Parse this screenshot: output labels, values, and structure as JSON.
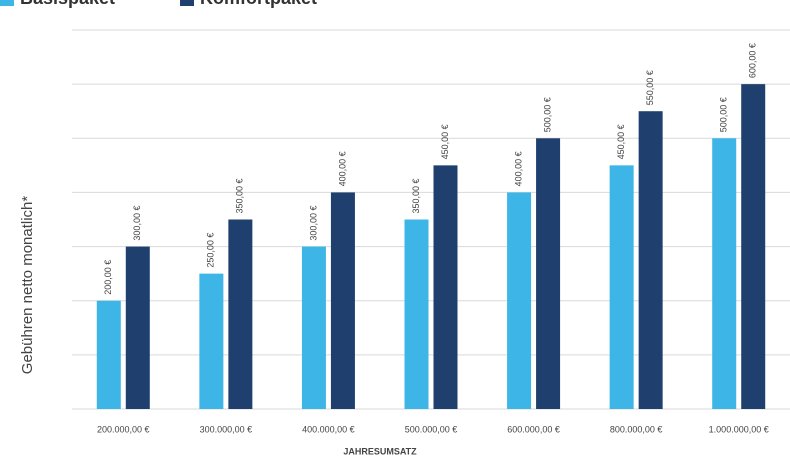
{
  "chart_data": {
    "type": "bar",
    "y_label": "Gebühren netto monatlich*",
    "x_label": "JAHRESUMSATZ",
    "categories": [
      "200.000,00 €",
      "300.000,00 €",
      "400.000,00 €",
      "500.000,00 €",
      "600.000,00 €",
      "800.000,00 €",
      "1.000.000,00 €"
    ],
    "series": [
      {
        "name": "Basispaket",
        "color": "#3db5e6",
        "values": [
          200,
          250,
          300,
          350,
          400,
          450,
          500
        ],
        "value_labels": [
          "200,00 €",
          "250,00 €",
          "300,00 €",
          "350,00 €",
          "400,00 €",
          "450,00 €",
          "500,00 €"
        ]
      },
      {
        "name": "Komfortpaket",
        "color": "#1f3f6e",
        "values": [
          300,
          350,
          400,
          450,
          500,
          550,
          600
        ],
        "value_labels": [
          "300,00 €",
          "350,00 €",
          "400,00 €",
          "450,00 €",
          "500,00 €",
          "550,00 €",
          "600,00 €"
        ]
      }
    ],
    "ylim": [
      0,
      700
    ],
    "yticks": [
      0,
      100,
      200,
      300,
      400,
      500,
      600,
      700
    ],
    "grid": true
  }
}
